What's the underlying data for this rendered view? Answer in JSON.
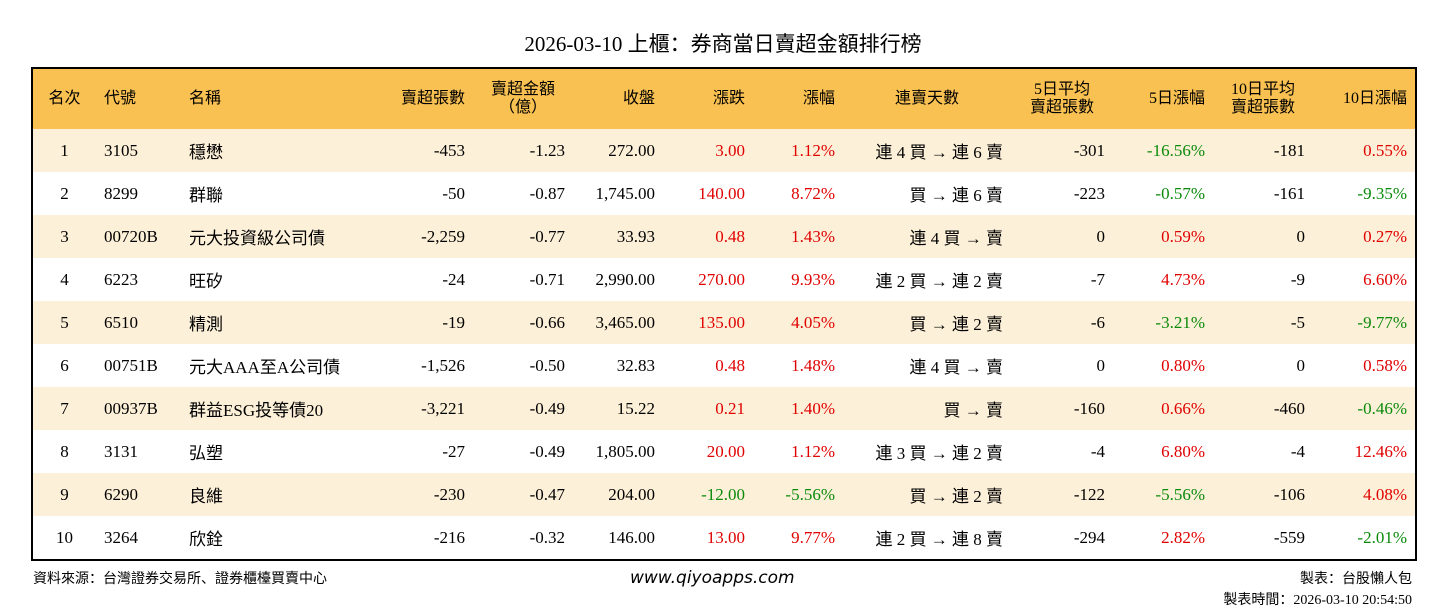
{
  "header": {
    "title": "2026-03-10 上櫃：券商當日賣超金額排行榜"
  },
  "table": {
    "columns": [
      [
        "名次"
      ],
      [
        "代號"
      ],
      [
        "名稱"
      ],
      [
        "賣超張數"
      ],
      [
        "賣超金額",
        "（億）"
      ],
      [
        "收盤"
      ],
      [
        "漲跌"
      ],
      [
        "漲幅"
      ],
      [
        "連賣天數"
      ],
      [
        "5日平均",
        "賣超張數"
      ],
      [
        "5日漲幅"
      ],
      [
        "10日平均",
        "賣超張數"
      ],
      [
        "10日漲幅"
      ]
    ],
    "rows": [
      [
        "1",
        "3105",
        "穩懋",
        "-453",
        "-1.23",
        "272.00",
        "3.00",
        "1.12%",
        "連 4 買 → 連 6 賣",
        "-301",
        "-16.56%",
        "-181",
        "0.55%"
      ],
      [
        "2",
        "8299",
        "群聯",
        "-50",
        "-0.87",
        "1,745.00",
        "140.00",
        "8.72%",
        "買 → 連 6 賣",
        "-223",
        "-0.57%",
        "-161",
        "-9.35%"
      ],
      [
        "3",
        "00720B",
        "元大投資級公司債",
        "-2,259",
        "-0.77",
        "33.93",
        "0.48",
        "1.43%",
        "連 4 買 → 賣",
        "0",
        "0.59%",
        "0",
        "0.27%"
      ],
      [
        "4",
        "6223",
        "旺矽",
        "-24",
        "-0.71",
        "2,990.00",
        "270.00",
        "9.93%",
        "連 2 買 → 連 2 賣",
        "-7",
        "4.73%",
        "-9",
        "6.60%"
      ],
      [
        "5",
        "6510",
        "精測",
        "-19",
        "-0.66",
        "3,465.00",
        "135.00",
        "4.05%",
        "買 → 連 2 賣",
        "-6",
        "-3.21%",
        "-5",
        "-9.77%"
      ],
      [
        "6",
        "00751B",
        "元大AAA至A公司債",
        "-1,526",
        "-0.50",
        "32.83",
        "0.48",
        "1.48%",
        "連 4 買 → 賣",
        "0",
        "0.80%",
        "0",
        "0.58%"
      ],
      [
        "7",
        "00937B",
        "群益ESG投等債20",
        "-3,221",
        "-0.49",
        "15.22",
        "0.21",
        "1.40%",
        "買 → 賣",
        "-160",
        "0.66%",
        "-460",
        "-0.46%"
      ],
      [
        "8",
        "3131",
        "弘塑",
        "-27",
        "-0.49",
        "1,805.00",
        "20.00",
        "1.12%",
        "連 3 買 → 連 2 賣",
        "-4",
        "6.80%",
        "-4",
        "12.46%"
      ],
      [
        "9",
        "6290",
        "良維",
        "-230",
        "-0.47",
        "204.00",
        "-12.00",
        "-5.56%",
        "買 → 連 2 賣",
        "-122",
        "-5.56%",
        "-106",
        "4.08%"
      ],
      [
        "10",
        "3264",
        "欣銓",
        "-216",
        "-0.32",
        "146.00",
        "13.00",
        "9.77%",
        "連 2 買 → 連 8 賣",
        "-294",
        "2.82%",
        "-559",
        "-2.01%"
      ]
    ]
  },
  "footer": {
    "source": "資料來源：台灣證券交易所、證券櫃檯買賣中心",
    "website": "www.qiyoapps.com",
    "author": "製表：台股懶人包",
    "time": "製表時間：2026-03-10 20:54:50"
  }
}
